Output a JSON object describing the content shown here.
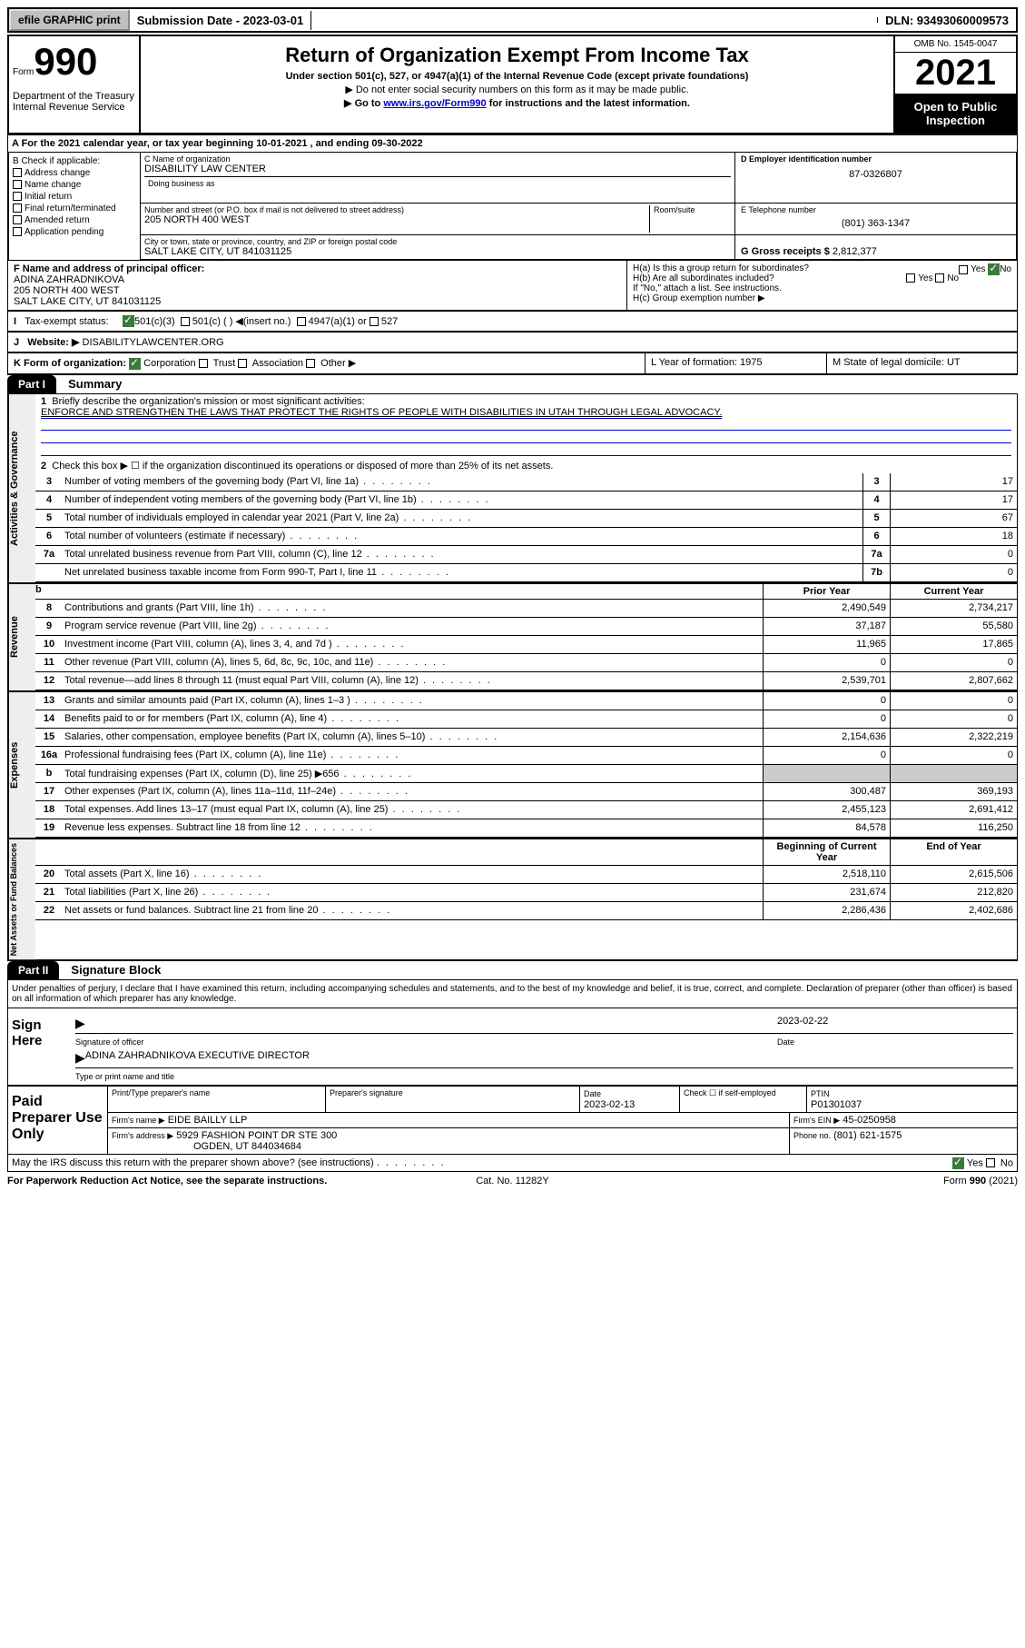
{
  "top": {
    "efile": "efile GRAPHIC print",
    "sub_date_label": "Submission Date - 2023-03-01",
    "dln": "DLN: 93493060009573"
  },
  "header": {
    "form": "Form",
    "num": "990",
    "dept": "Department of the Treasury Internal Revenue Service",
    "title": "Return of Organization Exempt From Income Tax",
    "sub1": "Under section 501(c), 527, or 4947(a)(1) of the Internal Revenue Code (except private foundations)",
    "sub2": "▶ Do not enter social security numbers on this form as it may be made public.",
    "sub3a": "▶ Go to ",
    "link": "www.irs.gov/Form990",
    "sub3b": " for instructions and the latest information.",
    "omb": "OMB No. 1545-0047",
    "year": "2021",
    "open": "Open to Public Inspection"
  },
  "row_a": "A For the 2021 calendar year, or tax year beginning 10-01-2021   , and ending 09-30-2022",
  "b": {
    "label": "B Check if applicable:",
    "items": [
      "Address change",
      "Name change",
      "Initial return",
      "Final return/terminated",
      "Amended return",
      "Application pending"
    ]
  },
  "c": {
    "name_label": "C Name of organization",
    "name": "DISABILITY LAW CENTER",
    "dba_label": "Doing business as",
    "street_label": "Number and street (or P.O. box if mail is not delivered to street address)",
    "room_label": "Room/suite",
    "street": "205 NORTH 400 WEST",
    "city_label": "City or town, state or province, country, and ZIP or foreign postal code",
    "city": "SALT LAKE CITY, UT  841031125"
  },
  "d": {
    "label": "D Employer identification number",
    "val": "87-0326807"
  },
  "e": {
    "label": "E Telephone number",
    "val": "(801) 363-1347"
  },
  "g": {
    "label": "G Gross receipts $",
    "val": "2,812,377"
  },
  "f": {
    "label": "F Name and address of principal officer:",
    "name": "ADINA ZAHRADNIKOVA",
    "street": "205 NORTH 400 WEST",
    "city": "SALT LAKE CITY, UT  841031125"
  },
  "h": {
    "a": "H(a)  Is this a group return for subordinates?",
    "b": "H(b)  Are all subordinates included?",
    "note": "If \"No,\" attach a list. See instructions.",
    "c": "H(c)  Group exemption number ▶"
  },
  "i": {
    "label": "Tax-exempt status:",
    "opt1": "501(c)(3)",
    "opt2": "501(c) (  ) ◀(insert no.)",
    "opt3": "4947(a)(1) or",
    "opt4": "527"
  },
  "j": {
    "label": "Website: ▶",
    "val": "DISABILITYLAWCENTER.ORG"
  },
  "k": {
    "label": "K Form of organization:",
    "opts": [
      "Corporation",
      "Trust",
      "Association",
      "Other ▶"
    ],
    "l": "L Year of formation: 1975",
    "m": "M State of legal domicile: UT"
  },
  "part1": {
    "hdr": "Part I",
    "title": "Summary",
    "l1": "Briefly describe the organization's mission or most significant activities:",
    "mission": "ENFORCE AND STRENGTHEN THE LAWS THAT PROTECT THE RIGHTS OF PEOPLE WITH DISABILITIES IN UTAH THROUGH LEGAL ADVOCACY.",
    "l2": "Check this box ▶ ☐  if the organization discontinued its operations or disposed of more than 25% of its net assets."
  },
  "gov_lines": [
    {
      "n": "3",
      "t": "Number of voting members of the governing body (Part VI, line 1a)",
      "box": "3",
      "v": "17"
    },
    {
      "n": "4",
      "t": "Number of independent voting members of the governing body (Part VI, line 1b)",
      "box": "4",
      "v": "17"
    },
    {
      "n": "5",
      "t": "Total number of individuals employed in calendar year 2021 (Part V, line 2a)",
      "box": "5",
      "v": "67"
    },
    {
      "n": "6",
      "t": "Total number of volunteers (estimate if necessary)",
      "box": "6",
      "v": "18"
    },
    {
      "n": "7a",
      "t": "Total unrelated business revenue from Part VIII, column (C), line 12",
      "box": "7a",
      "v": "0"
    },
    {
      "n": "",
      "t": "Net unrelated business taxable income from Form 990-T, Part I, line 11",
      "box": "7b",
      "v": "0"
    }
  ],
  "col_hdrs": {
    "prior": "Prior Year",
    "current": "Current Year"
  },
  "rev_lines": [
    {
      "n": "8",
      "t": "Contributions and grants (Part VIII, line 1h)",
      "p": "2,490,549",
      "c": "2,734,217"
    },
    {
      "n": "9",
      "t": "Program service revenue (Part VIII, line 2g)",
      "p": "37,187",
      "c": "55,580"
    },
    {
      "n": "10",
      "t": "Investment income (Part VIII, column (A), lines 3, 4, and 7d )",
      "p": "11,965",
      "c": "17,865"
    },
    {
      "n": "11",
      "t": "Other revenue (Part VIII, column (A), lines 5, 6d, 8c, 9c, 10c, and 11e)",
      "p": "0",
      "c": "0"
    },
    {
      "n": "12",
      "t": "Total revenue—add lines 8 through 11 (must equal Part VIII, column (A), line 12)",
      "p": "2,539,701",
      "c": "2,807,662"
    }
  ],
  "exp_lines": [
    {
      "n": "13",
      "t": "Grants and similar amounts paid (Part IX, column (A), lines 1–3 )",
      "p": "0",
      "c": "0"
    },
    {
      "n": "14",
      "t": "Benefits paid to or for members (Part IX, column (A), line 4)",
      "p": "0",
      "c": "0"
    },
    {
      "n": "15",
      "t": "Salaries, other compensation, employee benefits (Part IX, column (A), lines 5–10)",
      "p": "2,154,636",
      "c": "2,322,219"
    },
    {
      "n": "16a",
      "t": "Professional fundraising fees (Part IX, column (A), line 11e)",
      "p": "0",
      "c": "0"
    },
    {
      "n": "b",
      "t": "Total fundraising expenses (Part IX, column (D), line 25) ▶656",
      "p": "",
      "c": "",
      "shade": true
    },
    {
      "n": "17",
      "t": "Other expenses (Part IX, column (A), lines 11a–11d, 11f–24e)",
      "p": "300,487",
      "c": "369,193"
    },
    {
      "n": "18",
      "t": "Total expenses. Add lines 13–17 (must equal Part IX, column (A), line 25)",
      "p": "2,455,123",
      "c": "2,691,412"
    },
    {
      "n": "19",
      "t": "Revenue less expenses. Subtract line 18 from line 12",
      "p": "84,578",
      "c": "116,250"
    }
  ],
  "na_hdrs": {
    "beg": "Beginning of Current Year",
    "end": "End of Year"
  },
  "na_lines": [
    {
      "n": "20",
      "t": "Total assets (Part X, line 16)",
      "p": "2,518,110",
      "c": "2,615,506"
    },
    {
      "n": "21",
      "t": "Total liabilities (Part X, line 26)",
      "p": "231,674",
      "c": "212,820"
    },
    {
      "n": "22",
      "t": "Net assets or fund balances. Subtract line 21 from line 20",
      "p": "2,286,436",
      "c": "2,402,686"
    }
  ],
  "vert": {
    "gov": "Activities & Governance",
    "rev": "Revenue",
    "exp": "Expenses",
    "na": "Net Assets or Fund Balances"
  },
  "part2": {
    "hdr": "Part II",
    "title": "Signature Block"
  },
  "sig": {
    "decl": "Under penalties of perjury, I declare that I have examined this return, including accompanying schedules and statements, and to the best of my knowledge and belief, it is true, correct, and complete. Declaration of preparer (other than officer) is based on all information of which preparer has any knowledge.",
    "here": "Sign Here",
    "off_label": "Signature of officer",
    "date_label": "Date",
    "date": "2023-02-22",
    "name": "ADINA ZAHRADNIKOVA  EXECUTIVE DIRECTOR",
    "name_label": "Type or print name and title"
  },
  "prep": {
    "label": "Paid Preparer Use Only",
    "h1": "Print/Type preparer's name",
    "h2": "Preparer's signature",
    "h3": "Date",
    "date": "2023-02-13",
    "h4": "Check ☐ if self-employed",
    "h5": "PTIN",
    "ptin": "P01301037",
    "firm_label": "Firm's name    ▶",
    "firm": "EIDE BAILLY LLP",
    "ein_label": "Firm's EIN ▶",
    "ein": "45-0250958",
    "addr_label": "Firm's address ▶",
    "addr1": "5929 FASHION POINT DR STE 300",
    "addr2": "OGDEN, UT  844034684",
    "phone_label": "Phone no.",
    "phone": "(801) 621-1575"
  },
  "discuss": "May the IRS discuss this return with the preparer shown above? (see instructions)",
  "footer": {
    "l": "For Paperwork Reduction Act Notice, see the separate instructions.",
    "c": "Cat. No. 11282Y",
    "r": "Form 990 (2021)"
  }
}
